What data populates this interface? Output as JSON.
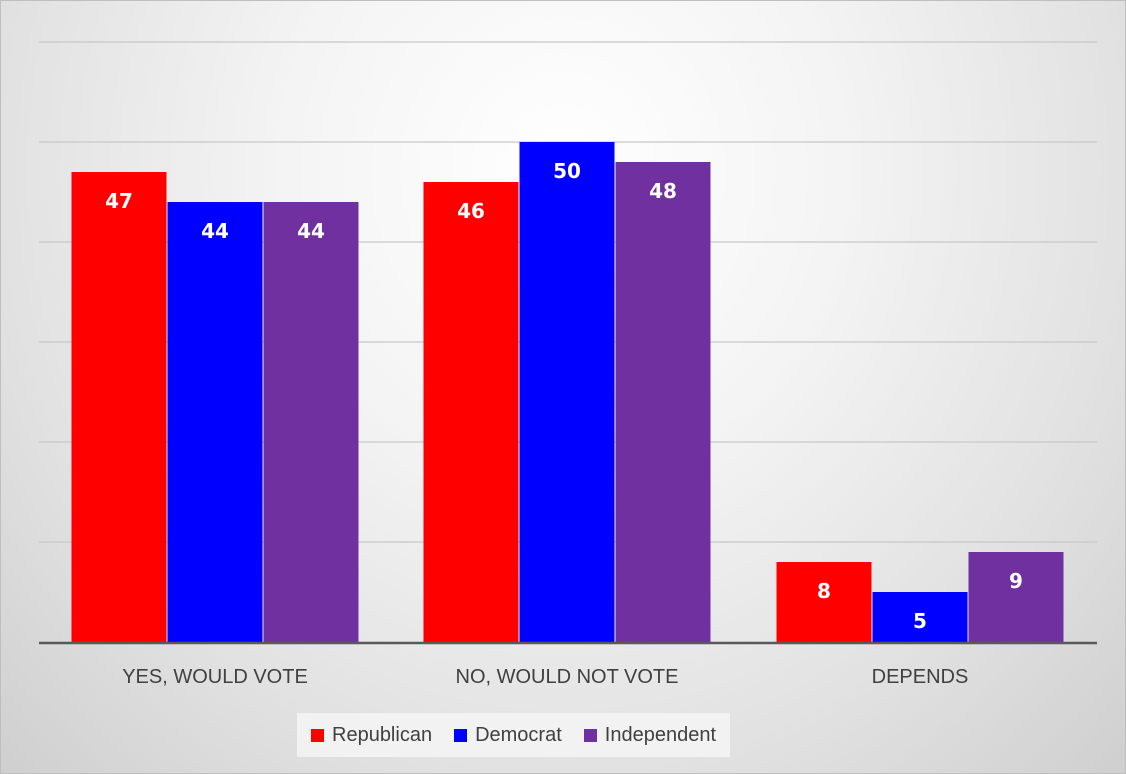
{
  "chart_data": {
    "type": "bar",
    "categories": [
      "YES, WOULD VOTE",
      "NO, WOULD NOT VOTE",
      "DEPENDS"
    ],
    "series": [
      {
        "name": "Republican",
        "values": [
          47,
          46,
          8
        ],
        "color": "#ff0000"
      },
      {
        "name": "Democrat",
        "values": [
          44,
          50,
          5
        ],
        "color": "#0000ff"
      },
      {
        "name": "Independent",
        "values": [
          44,
          48,
          9
        ],
        "color": "#7030a0"
      }
    ],
    "ylim": [
      0,
      60
    ],
    "grid": true,
    "legend": "bottom",
    "show_data_labels": true
  }
}
